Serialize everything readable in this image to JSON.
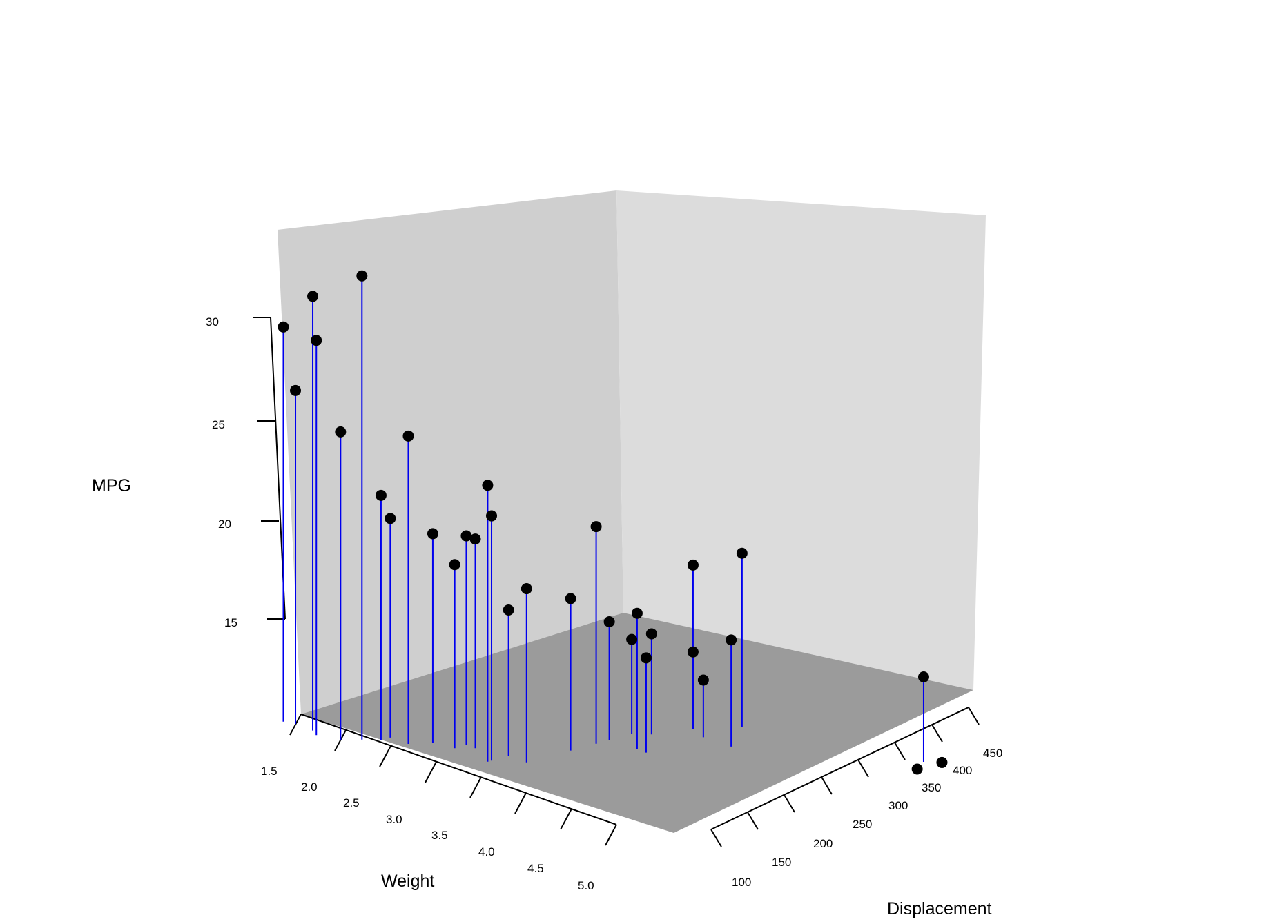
{
  "chart_data": {
    "type": "scatter",
    "title": "",
    "colors": {
      "back_wall_left": "#cfcfcf",
      "back_wall_right": "#dcdcdc",
      "floor": "#9b9b9b",
      "drop_line": "#0000ee",
      "point": "#000000"
    },
    "axes": {
      "x": {
        "label": "Weight",
        "ticks": [
          "1.5",
          "2.0",
          "2.5",
          "3.0",
          "3.5",
          "4.0",
          "4.5",
          "5.0"
        ]
      },
      "y": {
        "label": "Displacement",
        "ticks": [
          "100",
          "150",
          "200",
          "250",
          "300",
          "350",
          "400",
          "450"
        ]
      },
      "z": {
        "label": "MPG",
        "ticks": [
          "15",
          "20",
          "25",
          "30"
        ]
      }
    },
    "points": [
      {
        "weight": 1.5,
        "displacement": 75,
        "mpg": 30.4
      },
      {
        "weight": 1.6,
        "displacement": 79,
        "mpg": 27.3
      },
      {
        "weight": 1.8,
        "displacement": 78,
        "mpg": 32.4
      },
      {
        "weight": 1.9,
        "displacement": 71,
        "mpg": 30.4
      },
      {
        "weight": 2.1,
        "displacement": 79,
        "mpg": 26.0
      },
      {
        "weight": 2.2,
        "displacement": 95,
        "mpg": 33.9
      },
      {
        "weight": 2.3,
        "displacement": 108,
        "mpg": 22.8
      },
      {
        "weight": 2.3,
        "displacement": 120,
        "mpg": 21.5
      },
      {
        "weight": 2.5,
        "displacement": 120,
        "mpg": 26.0
      },
      {
        "weight": 2.6,
        "displacement": 140,
        "mpg": 21.0
      },
      {
        "weight": 2.8,
        "displacement": 145,
        "mpg": 19.7
      },
      {
        "weight": 2.8,
        "displacement": 160,
        "mpg": 21.0
      },
      {
        "weight": 2.9,
        "displacement": 160,
        "mpg": 21.0
      },
      {
        "weight": 3.2,
        "displacement": 141,
        "mpg": 24.4
      },
      {
        "weight": 3.2,
        "displacement": 168,
        "mpg": 17.8
      },
      {
        "weight": 3.2,
        "displacement": 146,
        "mpg": 22.8
      },
      {
        "weight": 3.4,
        "displacement": 168,
        "mpg": 19.2
      },
      {
        "weight": 3.4,
        "displacement": 258,
        "mpg": 21.4
      },
      {
        "weight": 3.4,
        "displacement": 225,
        "mpg": 18.1
      },
      {
        "weight": 3.4,
        "displacement": 275,
        "mpg": 16.4
      },
      {
        "weight": 3.4,
        "displacement": 304,
        "mpg": 15.2
      },
      {
        "weight": 3.5,
        "displacement": 318,
        "mpg": 15.5
      },
      {
        "weight": 3.6,
        "displacement": 360,
        "mpg": 18.7
      },
      {
        "weight": 3.6,
        "displacement": 360,
        "mpg": 14.3
      },
      {
        "weight": 3.7,
        "displacement": 276,
        "mpg": 17.3
      },
      {
        "weight": 3.8,
        "displacement": 276,
        "mpg": 15.2
      },
      {
        "weight": 3.8,
        "displacement": 350,
        "mpg": 13.3
      },
      {
        "weight": 3.8,
        "displacement": 400,
        "mpg": 19.2
      },
      {
        "weight": 4.1,
        "displacement": 351,
        "mpg": 15.8
      },
      {
        "weight": 5.3,
        "displacement": 460,
        "mpg": 14.7
      },
      {
        "weight": 5.4,
        "displacement": 440,
        "mpg": 10.4
      },
      {
        "weight": 5.4,
        "displacement": 472,
        "mpg": 10.4
      }
    ]
  }
}
